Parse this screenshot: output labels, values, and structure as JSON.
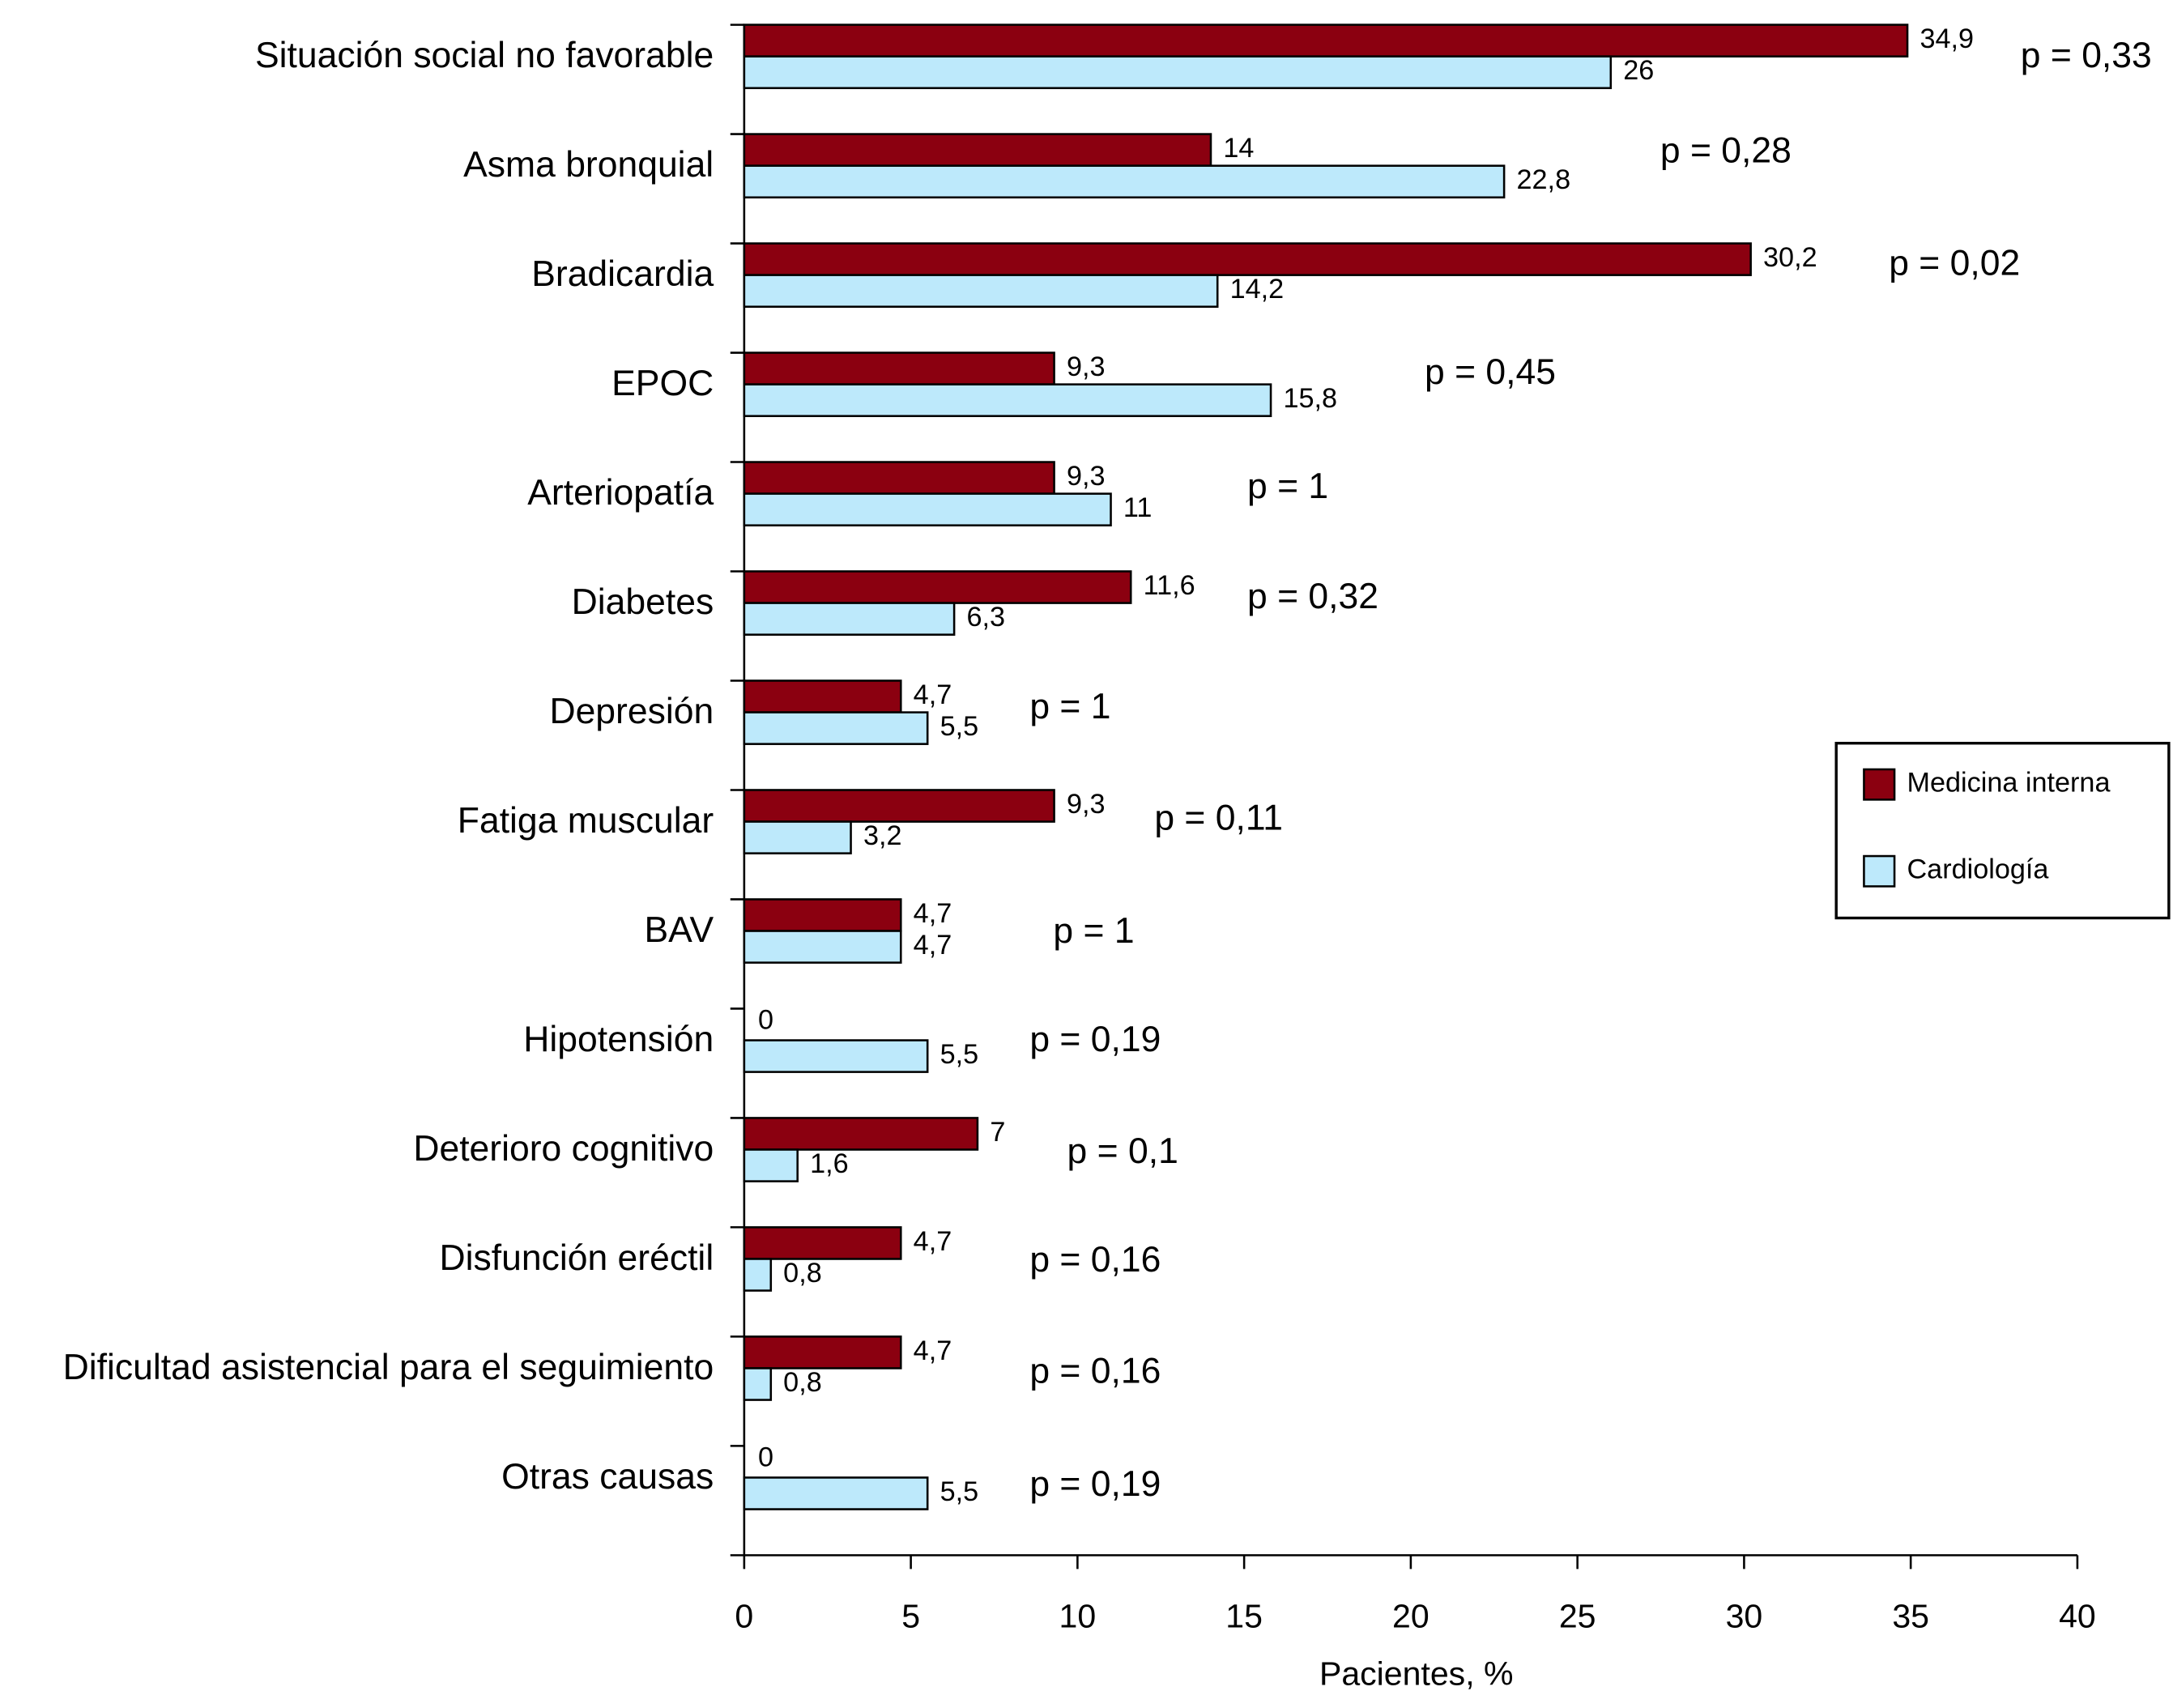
{
  "chart_data": {
    "type": "bar",
    "orientation": "horizontal",
    "x_label": "Pacientes, %",
    "categories": [
      "Situación social no favorable",
      "Asma bronquial",
      "Bradicardia",
      "EPOC",
      "Arteriopatía",
      "Diabetes",
      "Depresión",
      "Fatiga muscular",
      "BAV",
      "Hipotensión",
      "Deterioro cognitivo",
      "Disfunción eréctil",
      "Dificultad asistencial para el seguimiento",
      "Otras causas"
    ],
    "series": [
      {
        "name": "Medicina interna",
        "color": "#8b0010",
        "values": [
          34.9,
          14,
          30.2,
          9.3,
          9.3,
          11.6,
          4.7,
          9.3,
          4.7,
          0,
          7,
          4.7,
          4.7,
          0
        ],
        "value_labels": [
          "34,9",
          "14",
          "30,2",
          "9,3",
          "9,3",
          "11,6",
          "4,7",
          "9,3",
          "4,7",
          "0",
          "7",
          "4,7",
          "4,7",
          "0"
        ]
      },
      {
        "name": "Cardiología",
        "color": "#bde9fb",
        "values": [
          26,
          22.8,
          14.2,
          15.8,
          11,
          6.3,
          5.5,
          3.2,
          4.7,
          5.5,
          1.6,
          0.8,
          0.8,
          5.5
        ],
        "value_labels": [
          "26",
          "22,8",
          "14,2",
          "15,8",
          "11",
          "6,3",
          "5,5",
          "3,2",
          "4,7",
          "5,5",
          "1,6",
          "0,8",
          "0,8",
          "5,5"
        ]
      }
    ],
    "annotations": [
      "p = 0,33",
      "p = 0,28",
      "p = 0,02",
      "p = 0,45",
      "p = 1",
      "p = 0,32",
      "p = 1",
      "p = 0,11",
      "p = 1",
      "p = 0,19",
      "p = 0,1",
      "p = 0,16",
      "p = 0,16",
      "p = 0,19"
    ],
    "xlim": [
      0,
      40
    ],
    "xticks": [
      0,
      5,
      10,
      15,
      20,
      25,
      30,
      35,
      40
    ],
    "grid": false,
    "legend": "right"
  }
}
